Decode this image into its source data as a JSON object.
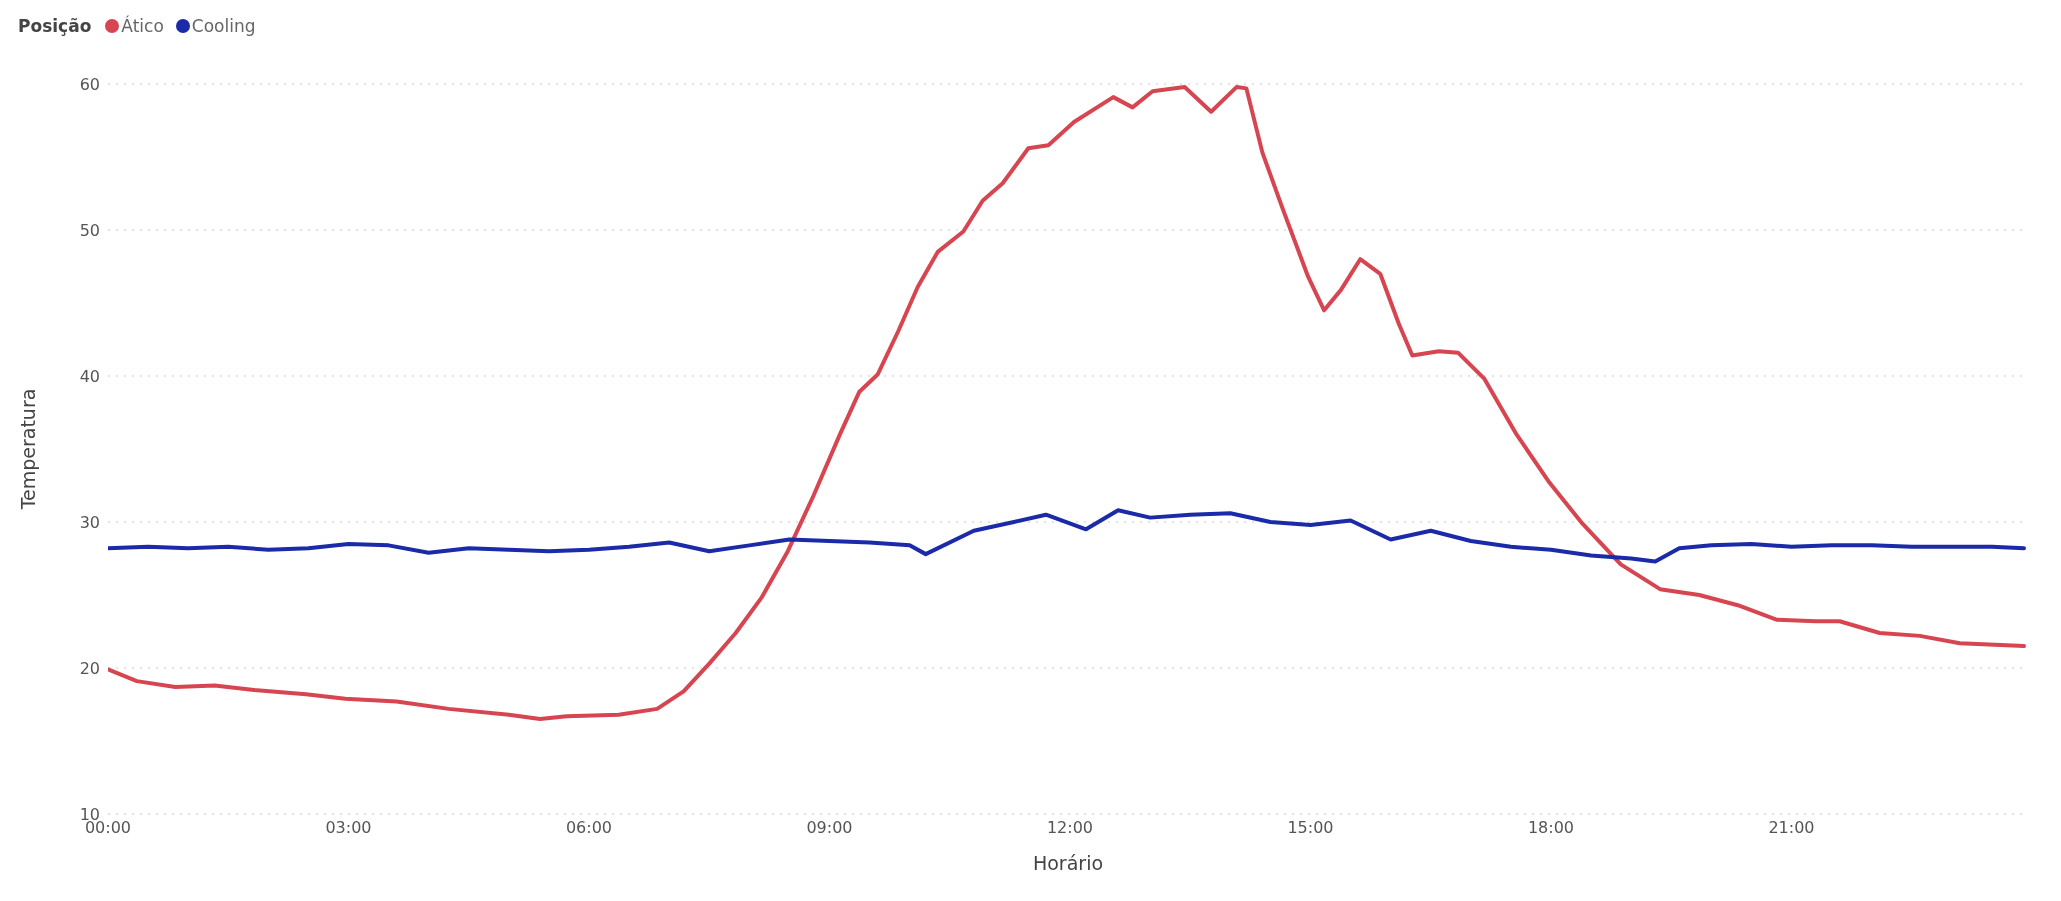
{
  "chart_data": {
    "type": "line",
    "xlabel": "Horário",
    "ylabel": "Temperatura",
    "legend_title": "Posição",
    "legend": "top left",
    "grid": "y",
    "marker": "none",
    "line_style": "solid",
    "xlim": [
      0,
      23.95
    ],
    "ylim": [
      10,
      60
    ],
    "yticks": [
      10,
      20,
      30,
      40,
      50,
      60
    ],
    "xticks": [
      {
        "value": 0,
        "label": "00:00"
      },
      {
        "value": 3,
        "label": "03:00"
      },
      {
        "value": 6,
        "label": "06:00"
      },
      {
        "value": 9,
        "label": "09:00"
      },
      {
        "value": 12,
        "label": "12:00"
      },
      {
        "value": 15,
        "label": "15:00"
      },
      {
        "value": 18,
        "label": "18:00"
      },
      {
        "value": 21,
        "label": "21:00"
      }
    ],
    "series": [
      {
        "name": "Ático",
        "color": "#d64550",
        "x": [
          0,
          0.36,
          0.84,
          1.33,
          1.82,
          2.47,
          2.96,
          3.6,
          4.25,
          5.0,
          5.39,
          5.72,
          6.37,
          6.85,
          7.18,
          7.5,
          7.83,
          8.15,
          8.48,
          8.8,
          9.13,
          9.37,
          9.6,
          9.86,
          10.1,
          10.35,
          10.67,
          10.91,
          11.16,
          11.48,
          11.73,
          12.05,
          12.54,
          12.78,
          13.03,
          13.43,
          13.76,
          14.08,
          14.2,
          14.4,
          14.65,
          14.97,
          15.17,
          15.38,
          15.62,
          15.87,
          16.1,
          16.27,
          16.6,
          16.84,
          17.17,
          17.57,
          17.98,
          18.39,
          18.87,
          19.36,
          19.85,
          20.33,
          20.82,
          21.3,
          21.6,
          22.1,
          22.6,
          23.1,
          23.9
        ],
        "values": [
          19.9,
          19.1,
          18.7,
          18.8,
          18.5,
          18.2,
          17.9,
          17.7,
          17.2,
          16.8,
          16.5,
          16.7,
          16.8,
          17.2,
          18.4,
          20.3,
          22.4,
          24.8,
          28.0,
          31.8,
          36.0,
          38.9,
          40.1,
          43.1,
          46.1,
          48.5,
          49.9,
          52.0,
          53.2,
          55.6,
          55.8,
          57.4,
          59.1,
          58.4,
          59.5,
          59.8,
          58.1,
          59.8,
          59.7,
          55.3,
          51.5,
          46.8,
          44.5,
          45.9,
          48.0,
          47.0,
          43.6,
          41.4,
          41.7,
          41.6,
          39.8,
          36.0,
          32.7,
          29.9,
          27.1,
          25.4,
          25.0,
          24.3,
          23.3,
          23.2,
          23.2,
          22.4,
          22.2,
          21.7,
          21.5
        ]
      },
      {
        "name": "Cooling",
        "color": "#1a2aa8",
        "x": [
          0,
          0.5,
          1,
          1.5,
          2,
          2.5,
          3,
          3.5,
          4,
          4.5,
          5,
          5.5,
          6,
          6.5,
          7,
          7.5,
          8,
          8.5,
          9,
          9.5,
          10,
          10.2,
          10.8,
          11.3,
          11.7,
          12.2,
          12.6,
          13,
          13.5,
          14,
          14.5,
          15,
          15.5,
          16,
          16.5,
          17,
          17.5,
          18,
          18.5,
          19,
          19.3,
          19.6,
          20,
          20.5,
          21,
          21.5,
          22,
          22.5,
          23,
          23.5,
          23.9
        ],
        "values": [
          28.2,
          28.3,
          28.2,
          28.3,
          28.1,
          28.2,
          28.5,
          28.4,
          27.9,
          28.2,
          28.1,
          28.0,
          28.1,
          28.3,
          28.6,
          28.0,
          28.4,
          28.8,
          28.7,
          28.6,
          28.4,
          27.8,
          29.4,
          30.0,
          30.5,
          29.5,
          30.8,
          30.3,
          30.5,
          30.6,
          30.0,
          29.8,
          30.1,
          28.8,
          29.4,
          28.7,
          28.3,
          28.1,
          27.7,
          27.5,
          27.3,
          28.2,
          28.4,
          28.5,
          28.3,
          28.4,
          28.4,
          28.3,
          28.3,
          28.3,
          28.2
        ]
      }
    ]
  }
}
